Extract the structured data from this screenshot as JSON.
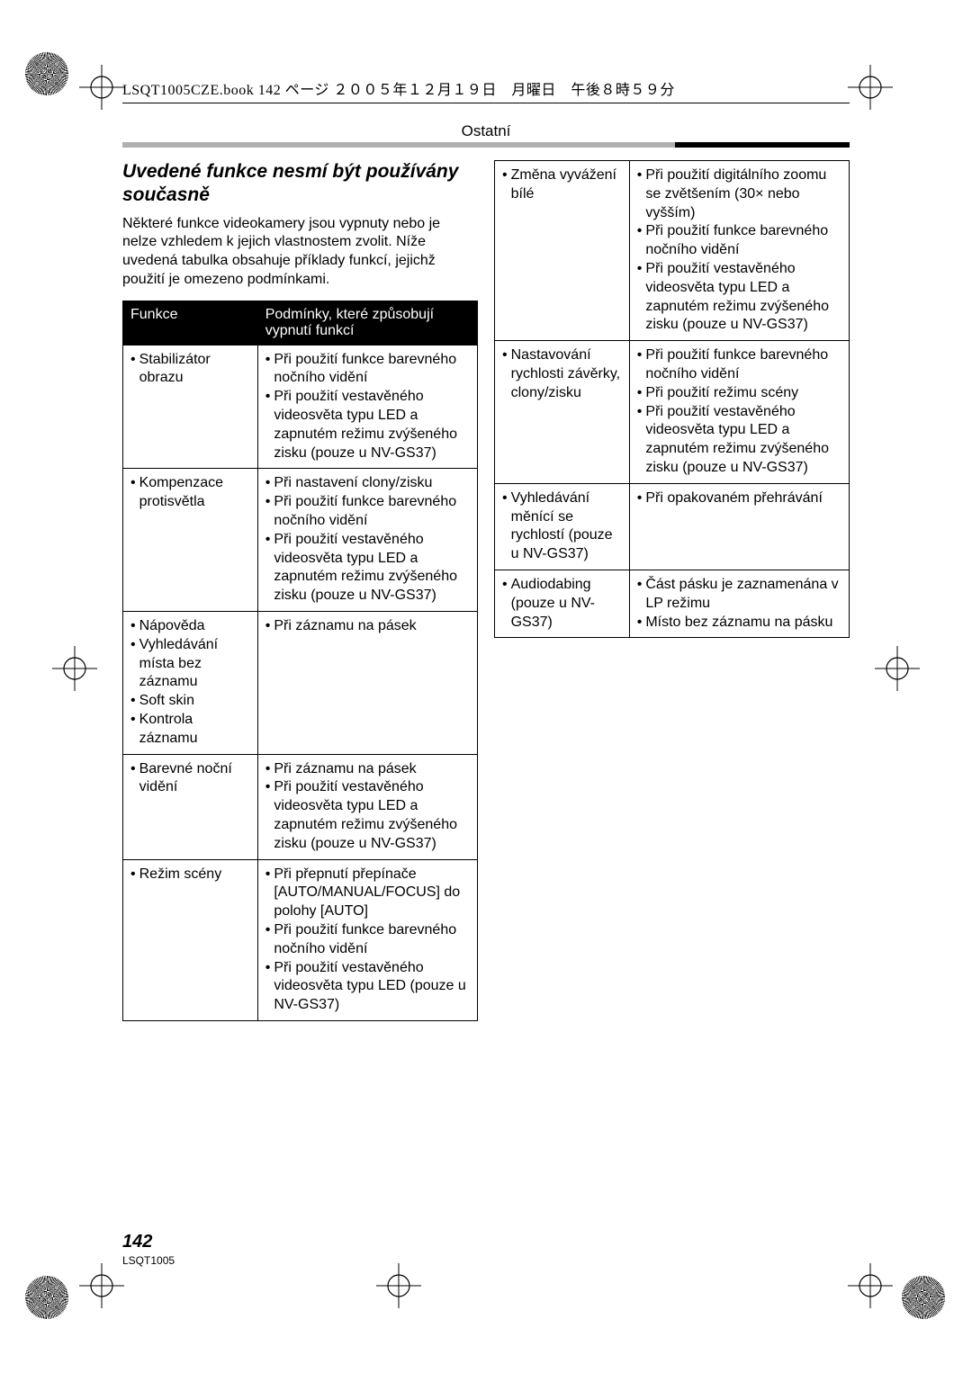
{
  "header_text": "LSQT1005CZE.book  142 ページ  ２００５年１２月１９日　月曜日　午後８時５９分",
  "section_label": "Ostatní",
  "title": "Uvedené funkce nesmí být používány současně",
  "intro": "Některé funkce videokamery jsou vypnuty nebo je nelze vzhledem k jejich vlastnostem zvolit. Níže uvedená tabulka obsahuje příklady funkcí, jejichž použití je omezeno podmínkami.",
  "th_left": "Funkce",
  "th_right": "Podmínky, které způsobují vypnutí funkcí",
  "left_rows": [
    {
      "fn": [
        "Stabilizátor obrazu"
      ],
      "cond": [
        "Při použití funkce barevného nočního vidění",
        "Při použití vestavěného videosvěta typu LED a zapnutém režimu zvýšeného zisku (pouze u NV-GS37)"
      ]
    },
    {
      "fn": [
        "Kompenzace protisvětla"
      ],
      "cond": [
        "Při nastavení clony/zisku",
        "Při použití funkce barevného nočního vidění",
        "Při použití vestavěného videosvěta typu LED a zapnutém režimu zvýšeného zisku (pouze u NV-GS37)"
      ]
    },
    {
      "fn": [
        "Nápověda",
        "Vyhledávání místa bez záznamu",
        "Soft skin",
        "Kontrola záznamu"
      ],
      "cond": [
        "Při záznamu na pásek"
      ]
    },
    {
      "fn": [
        "Barevné noční vidění"
      ],
      "cond": [
        "Při záznamu na pásek",
        "Při použití vestavěného videosvěta typu LED a zapnutém režimu zvýšeného zisku (pouze u NV-GS37)"
      ]
    },
    {
      "fn": [
        "Režim scény"
      ],
      "cond": [
        "Při přepnutí přepínače [AUTO/MANUAL/FOCUS] do polohy [AUTO]",
        "Při použití funkce barevného nočního vidění",
        "Při použití vestavěného videosvěta typu LED (pouze u NV-GS37)"
      ]
    }
  ],
  "right_rows": [
    {
      "fn": [
        "Změna vyvážení bílé"
      ],
      "cond": [
        "Při použití digitálního zoomu se zvětšením (30× nebo vyšším)",
        "Při použití funkce barevného nočního vidění",
        "Při použití vestavěného videosvěta typu LED a zapnutém režimu zvýšeného zisku (pouze u NV-GS37)"
      ]
    },
    {
      "fn": [
        "Nastavování rychlosti závěrky, clony/zisku"
      ],
      "cond": [
        "Při použití funkce barevného nočního vidění",
        "Při použití režimu scény",
        "Při použití vestavěného videosvěta typu LED a zapnutém režimu zvýšeného zisku (pouze u NV-GS37)"
      ]
    },
    {
      "fn": [
        "Vyhledávání měnící se rychlostí (pouze u NV-GS37)"
      ],
      "cond": [
        "Při opakovaném přehrávání"
      ]
    },
    {
      "fn": [
        "Audiodabing (pouze u NV-GS37)"
      ],
      "cond": [
        "Část pásku je zaznamenána v LP režimu",
        "Místo bez záznamu na pásku"
      ]
    }
  ],
  "page_num": "142",
  "doc_code": "LSQT1005",
  "colors": {
    "text": "#000000",
    "bg": "#ffffff",
    "bar_light": "#b0b0b0",
    "bar_dark": "#000000"
  }
}
